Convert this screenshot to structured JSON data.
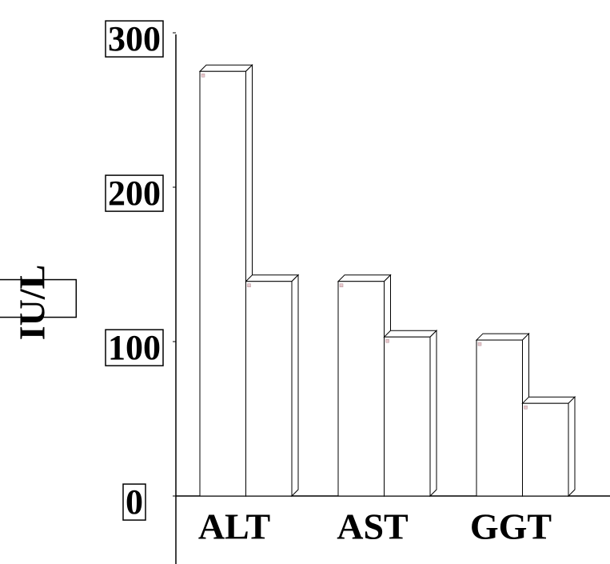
{
  "chart_data": {
    "type": "bar3d",
    "y_label": "IU/L",
    "categories": [
      "ALT",
      "AST",
      "GGT"
    ],
    "series": [
      {
        "color": "#ffffff",
        "values": [
          275,
          139,
          101
        ]
      },
      {
        "color": "#ffffff",
        "values": [
          139,
          103,
          60
        ]
      }
    ],
    "ylim": [
      0,
      300
    ],
    "yticks": [
      0,
      100,
      200,
      300
    ]
  }
}
